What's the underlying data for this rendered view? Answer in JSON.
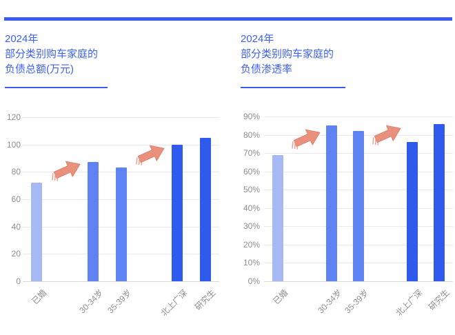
{
  "accent_color": "#3d5af1",
  "title_color": "#3c5ff0",
  "axis_text_color": "#8e8e8e",
  "grid_color": "#e9e9e9",
  "arrow_color": "#e9917d",
  "arrow_outline_color": "#df7e6a",
  "chart_data": [
    {
      "type": "bar",
      "title": "2024年部分类别购车家庭的负债总额(万元)",
      "title_lines": [
        "2024年",
        "部分类别购车家庭的",
        "负债总额(万元)"
      ],
      "categories": [
        "已婚",
        "30-34岁",
        "35-39岁",
        "北上广深",
        "研究生"
      ],
      "values": [
        72,
        87,
        83,
        100,
        105
      ],
      "unit": "万元",
      "ylim": [
        0,
        120
      ],
      "ytick_step": 20,
      "ytick_labels": [
        "0",
        "20",
        "40",
        "60",
        "80",
        "100",
        "120"
      ],
      "grid": true,
      "legend": "none",
      "bar_colors": [
        "#a6b9f5",
        "#5e82f2",
        "#5e82f2",
        "#2e5bee",
        "#2e5bee"
      ],
      "slot_count": 7,
      "bar_slots": [
        0,
        2,
        3,
        5,
        6
      ],
      "arrow_slots": [
        1,
        4
      ]
    },
    {
      "type": "bar",
      "title": "2024年部分类别购车家庭的负债渗透率",
      "title_lines": [
        "2024年",
        "部分类别购车家庭的",
        "负债渗透率"
      ],
      "categories": [
        "已婚",
        "30-34岁",
        "35-39岁",
        "北上广深",
        "研究生"
      ],
      "values": [
        69,
        85,
        82,
        76,
        86
      ],
      "unit": "%",
      "ylim": [
        0,
        90
      ],
      "ytick_step": 10,
      "ytick_labels": [
        "0%",
        "10%",
        "20%",
        "30%",
        "40%",
        "50%",
        "60%",
        "70%",
        "80%",
        "90%"
      ],
      "grid": true,
      "legend": "none",
      "bar_colors": [
        "#a6b9f5",
        "#5e82f2",
        "#5e82f2",
        "#2e5bee",
        "#2e5bee"
      ],
      "slot_count": 7,
      "bar_slots": [
        0,
        2,
        3,
        5,
        6
      ],
      "arrow_slots": [
        1,
        4
      ]
    }
  ]
}
